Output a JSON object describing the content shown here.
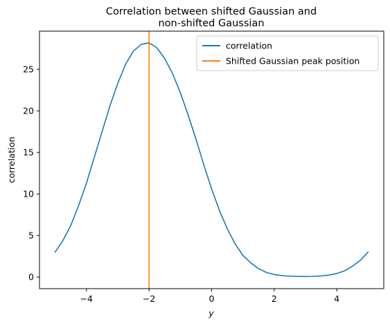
{
  "chart_data": {
    "type": "line",
    "title_lines": [
      "Correlation between shifted Gaussian and",
      "non-shifted Gaussian"
    ],
    "xlabel": "y",
    "ylabel": "correlation",
    "xlim": [
      -5.5,
      5.5
    ],
    "ylim": [
      -1.4,
      29.6
    ],
    "xticks": [
      -4,
      -2,
      0,
      2,
      4
    ],
    "xtick_labels": [
      "−4",
      "−2",
      "0",
      "2",
      "4"
    ],
    "yticks": [
      0,
      5,
      10,
      15,
      20,
      25
    ],
    "ytick_labels": [
      "0",
      "5",
      "10",
      "15",
      "20",
      "25"
    ],
    "grid": false,
    "legend_position": "top-right",
    "series": [
      {
        "name": "correlation",
        "color": "#1f77b4",
        "x": [
          -5.0,
          -4.75,
          -4.5,
          -4.25,
          -4.0,
          -3.75,
          -3.5,
          -3.25,
          -3.0,
          -2.75,
          -2.5,
          -2.25,
          -2.0,
          -1.75,
          -1.5,
          -1.25,
          -1.0,
          -0.75,
          -0.5,
          -0.25,
          0.0,
          0.25,
          0.5,
          0.75,
          1.0,
          1.25,
          1.5,
          1.75,
          2.0,
          2.25,
          2.5,
          2.75,
          3.0,
          3.25,
          3.5,
          3.75,
          4.0,
          4.25,
          4.5,
          4.75,
          5.0
        ],
        "y": [
          3.0,
          4.4,
          6.2,
          8.6,
          11.3,
          14.4,
          17.5,
          20.6,
          23.3,
          25.6,
          27.2,
          28.0,
          28.2,
          27.6,
          26.3,
          24.5,
          22.2,
          19.5,
          16.6,
          13.5,
          10.6,
          8.0,
          5.8,
          4.0,
          2.6,
          1.7,
          1.0,
          0.55,
          0.3,
          0.17,
          0.1,
          0.07,
          0.06,
          0.08,
          0.13,
          0.23,
          0.42,
          0.75,
          1.3,
          2.0,
          3.0
        ]
      }
    ],
    "vlines": [
      {
        "name": "Shifted Gaussian peak position",
        "x": -2.0,
        "color": "#ff7f0e"
      }
    ]
  }
}
